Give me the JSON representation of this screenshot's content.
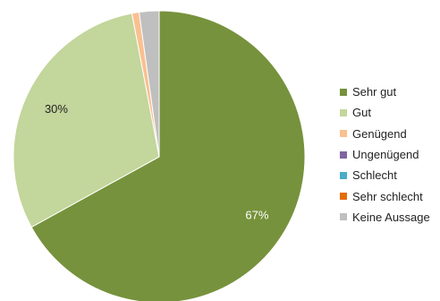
{
  "chart_data": {
    "type": "pie",
    "title": "",
    "categories": [
      "Sehr gut",
      "Gut",
      "Genügend",
      "Ungenügend",
      "Schlecht",
      "Sehr schlecht",
      "Keine Aussage"
    ],
    "values": [
      67,
      30,
      0.8,
      0,
      0,
      0,
      2.2
    ],
    "data_labels": [
      "67%",
      "30%",
      "",
      "",
      "",
      "",
      ""
    ],
    "colors": [
      "#76923c",
      "#c3d69b",
      "#fac090",
      "#8064a2",
      "#4bacc6",
      "#e46c0a",
      "#bfbfbf"
    ],
    "legend": {
      "position": "right",
      "entries": [
        "Sehr gut",
        "Gut",
        "Genügend",
        "Ungenügend",
        "Schlecht",
        "Sehr schlecht",
        "Keine Aussage"
      ]
    }
  }
}
